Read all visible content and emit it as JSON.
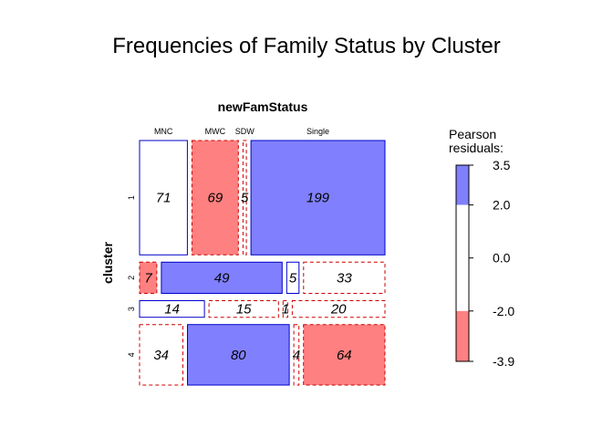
{
  "chart_data": {
    "type": "mosaic",
    "title": "Frequencies of Family Status by Cluster",
    "column_variable": "newFamStatus",
    "row_variable": "cluster",
    "columns": [
      "MNC",
      "MWC",
      "SDW",
      "Single"
    ],
    "rows": [
      "1",
      "2",
      "3",
      "4"
    ],
    "counts": [
      [
        71,
        69,
        5,
        199
      ],
      [
        7,
        49,
        5,
        33
      ],
      [
        14,
        15,
        1,
        20
      ],
      [
        34,
        80,
        4,
        64
      ]
    ],
    "residual_sign": [
      [
        0,
        -1,
        -1,
        1
      ],
      [
        -1,
        1,
        0,
        -1
      ],
      [
        0,
        -1,
        -1,
        -1
      ],
      [
        -1,
        1,
        -1,
        -1
      ]
    ],
    "residual_shade": [
      [
        0,
        1,
        0,
        1
      ],
      [
        1,
        1,
        0,
        0
      ],
      [
        0,
        0,
        0,
        0
      ],
      [
        0,
        1,
        0,
        1
      ]
    ],
    "legend": {
      "title_line1": "Pearson",
      "title_line2": "residuals:",
      "ticks": [
        "3.5",
        "2.0",
        "0.0",
        "-2.0",
        "-3.9"
      ],
      "range": [
        -3.9,
        3.5
      ],
      "positive_color": "#8080FF",
      "negative_color": "#FF8080",
      "positive_border": "#0000CC",
      "negative_border": "#CC0000"
    }
  }
}
